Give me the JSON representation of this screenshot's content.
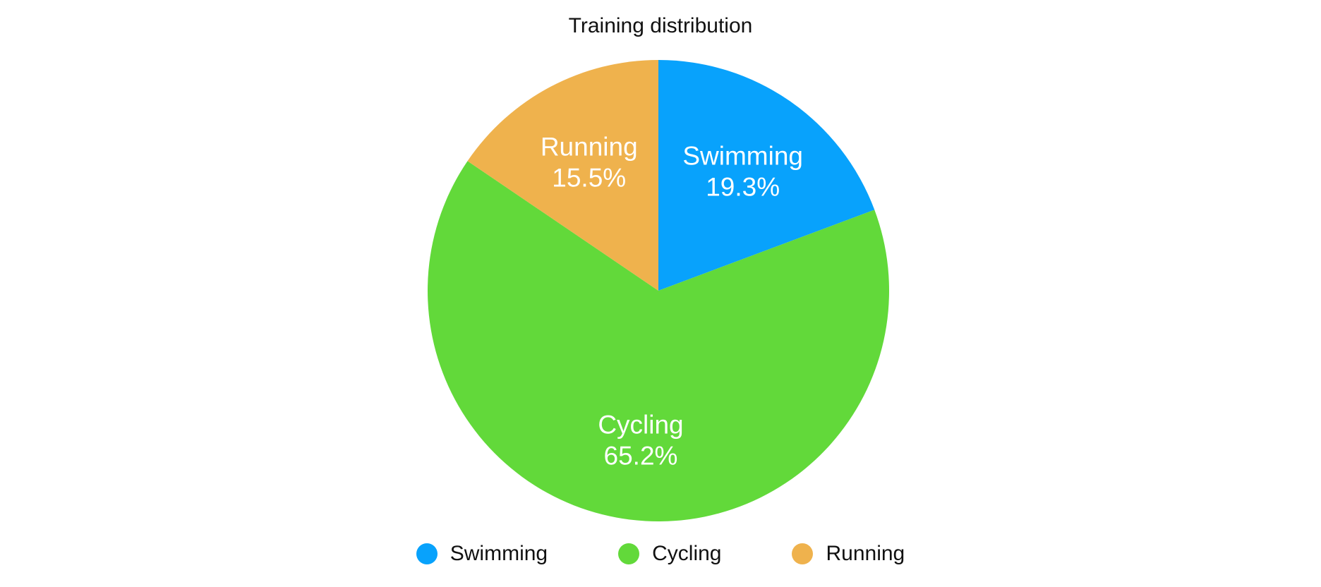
{
  "chart_data": {
    "type": "pie",
    "title": "Training distribution",
    "categories": [
      "Swimming",
      "Cycling",
      "Running"
    ],
    "values": [
      19.3,
      65.2,
      15.5
    ],
    "value_labels": [
      "19.3%",
      "65.2%",
      "15.5%"
    ],
    "colors": [
      "#08a2fc",
      "#62d93a",
      "#efb24d"
    ],
    "legend": {
      "position": "bottom",
      "items": [
        {
          "label": "Swimming",
          "color": "#08a2fc"
        },
        {
          "label": "Cycling",
          "color": "#62d93a"
        },
        {
          "label": "Running",
          "color": "#efb24d"
        }
      ]
    }
  }
}
